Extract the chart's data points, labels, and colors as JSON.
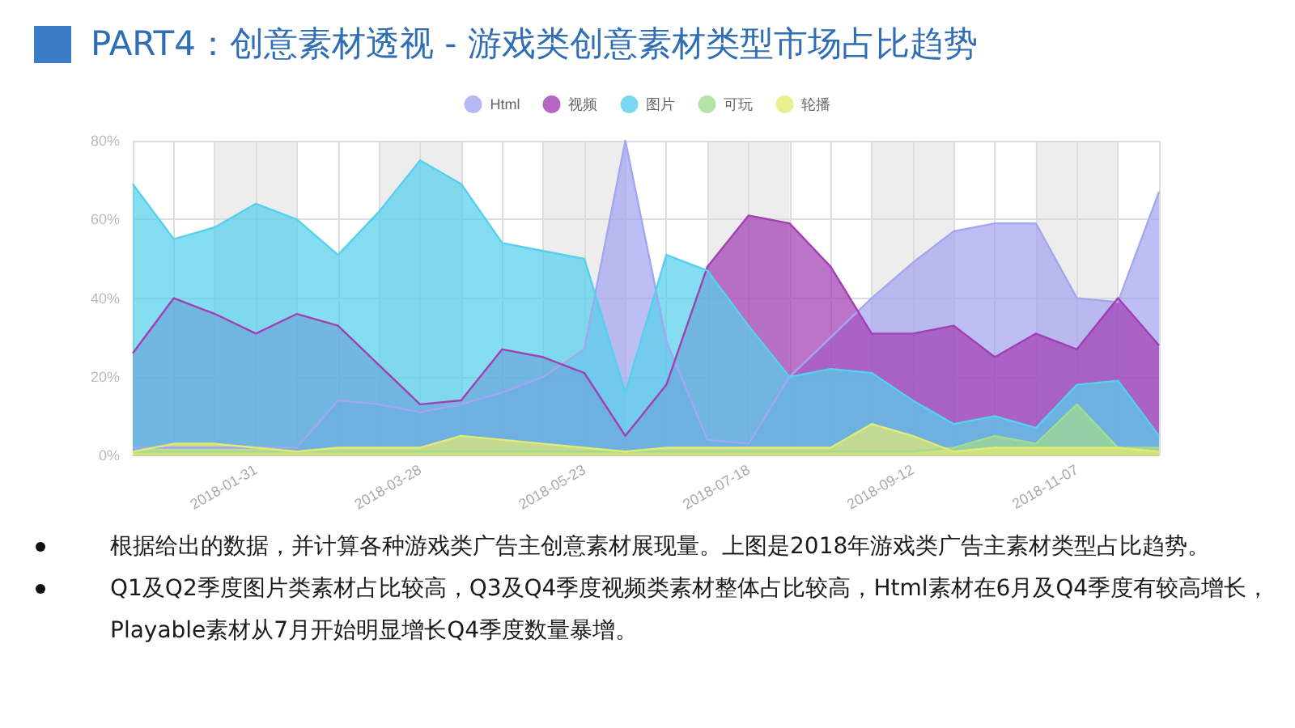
{
  "chart_data": {
    "type": "area",
    "title": "PART4：创意素材透视 - 游戏类创意素材类型市场占比趋势",
    "annotations": [
      "根据给出的数据，并计算各种游戏类广告主创意素材展现量。上图是2018年游戏类广告主素材类型占比趋势。",
      "Q1及Q2季度图片类素材占比较高，Q3及Q4季度视频类素材整体占比较高，Html素材在6月及Q4季度有较高增长，Playable素材从7月开始明显增长Q4季度数量暴增。"
    ],
    "categories": [
      null,
      null,
      null,
      "2018-01-31",
      null,
      null,
      null,
      "2018-03-28",
      null,
      null,
      null,
      "2018-05-23",
      null,
      null,
      null,
      "2018-07-18",
      null,
      null,
      null,
      "2018-09-12",
      null,
      null,
      null,
      "2018-11-07",
      null,
      null
    ],
    "series": [
      {
        "name": "Html",
        "color": "#a3a6f0",
        "values": [
          2,
          2,
          2,
          2,
          2,
          14,
          13,
          11,
          13,
          16,
          20,
          27,
          80,
          29,
          4,
          3,
          20,
          30,
          40,
          49,
          57,
          59,
          59,
          40,
          39,
          67
        ]
      },
      {
        "name": "视频",
        "color": "#a23fb3",
        "values": [
          26,
          40,
          36,
          31,
          36,
          33,
          23,
          13,
          14,
          27,
          25,
          21,
          5,
          18,
          48,
          61,
          59,
          48,
          31,
          31,
          33,
          25,
          31,
          27,
          40,
          28
        ]
      },
      {
        "name": "图片",
        "color": "#56d0ec",
        "values": [
          69,
          55,
          58,
          64,
          60,
          51,
          62,
          75,
          69,
          54,
          52,
          50,
          16,
          51,
          47,
          33,
          20,
          22,
          21,
          14,
          8,
          10,
          7,
          18,
          19,
          5
        ]
      },
      {
        "name": "可玩",
        "color": "#a3dc8f",
        "values": [
          1,
          1,
          1,
          1,
          1,
          1,
          1,
          1,
          1,
          1,
          1,
          1,
          1,
          1,
          1,
          1,
          1,
          1,
          1,
          1,
          2,
          5,
          3,
          13,
          2,
          2
        ]
      },
      {
        "name": "轮播",
        "color": "#e3ea73",
        "values": [
          1,
          3,
          3,
          2,
          1,
          2,
          2,
          2,
          5,
          4,
          3,
          2,
          1,
          2,
          2,
          2,
          2,
          2,
          8,
          5,
          1,
          2,
          2,
          2,
          2,
          1
        ]
      }
    ],
    "ylim": [
      0,
      80
    ],
    "yticks": [
      {
        "value": 0,
        "label": "0%"
      },
      {
        "value": 20,
        "label": "20%"
      },
      {
        "value": 40,
        "label": "40%"
      },
      {
        "value": 60,
        "label": "60%"
      },
      {
        "value": 80,
        "label": "80%"
      }
    ],
    "grid": true,
    "legend": "top",
    "line_style": "solid"
  }
}
